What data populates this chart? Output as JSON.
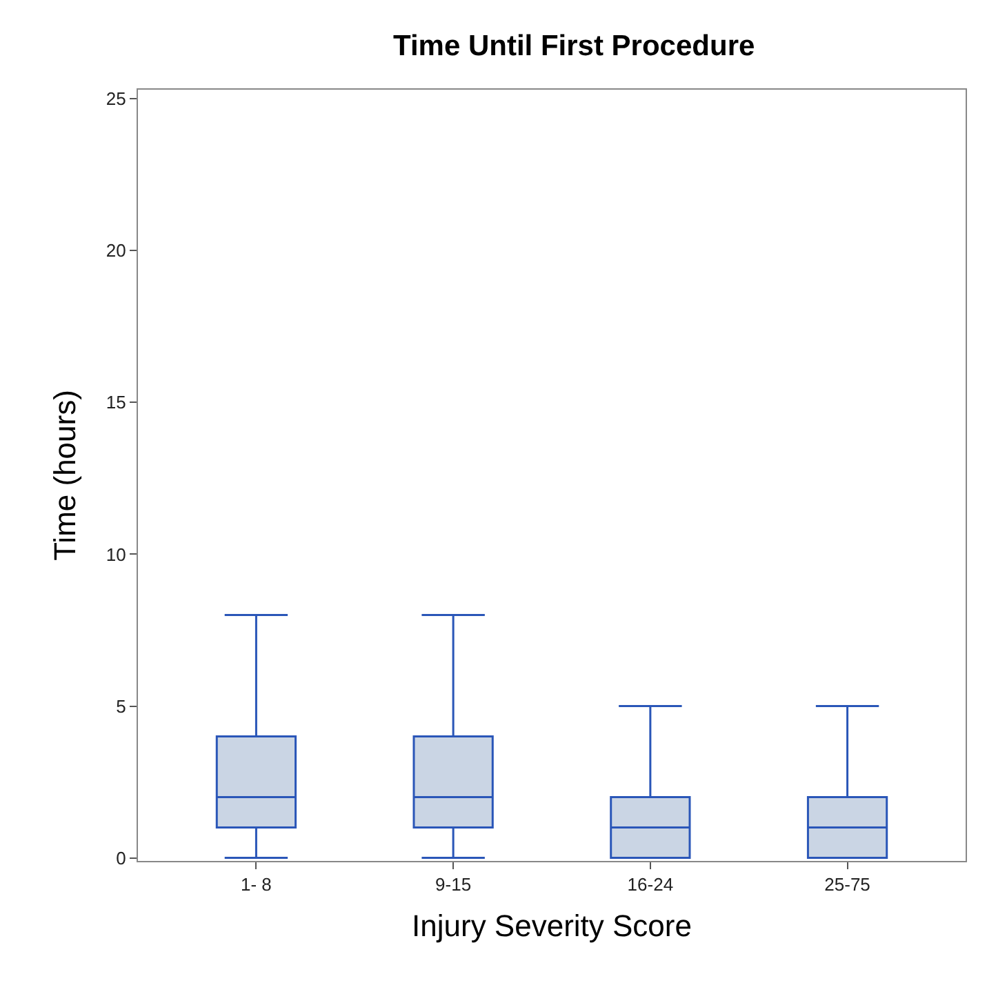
{
  "chart_data": {
    "type": "box",
    "title": "Time Until First Procedure",
    "xlabel": "Injury Severity Score",
    "ylabel": "Time (hours)",
    "categories": [
      "1- 8",
      "9-15",
      "16-24",
      "25-75"
    ],
    "boxes": [
      {
        "low": 0,
        "q1": 1,
        "median": 2,
        "q3": 4,
        "high": 8
      },
      {
        "low": 0,
        "q1": 1,
        "median": 2,
        "q3": 4,
        "high": 8
      },
      {
        "low": 0,
        "q1": 0,
        "median": 1,
        "q3": 2,
        "high": 5
      },
      {
        "low": 0,
        "q1": 0,
        "median": 1,
        "q3": 2,
        "high": 5
      }
    ],
    "color": "#2a56b8",
    "colors": [
      "#cad5e4",
      "#cad5e4",
      "#cad5e4",
      "#cad5e4"
    ],
    "ylim": [
      -0.1,
      25.3
    ],
    "yticks": [
      0,
      5,
      10,
      15,
      20,
      25
    ]
  }
}
